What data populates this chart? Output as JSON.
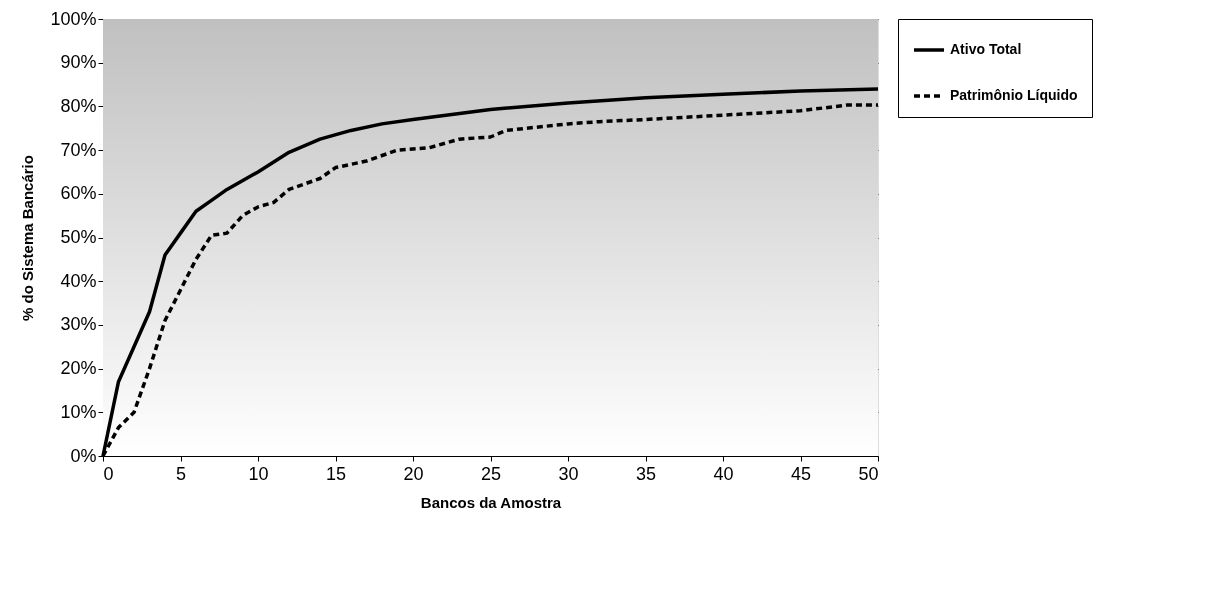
{
  "chart_data": {
    "type": "line",
    "xlabel": "Bancos da Amostra",
    "ylabel": "% do Sistema Bancário",
    "xlim": [
      0,
      50
    ],
    "xticks": [
      0,
      5,
      10,
      15,
      20,
      25,
      30,
      35,
      40,
      45,
      50
    ],
    "ylim": [
      0,
      100
    ],
    "yticks": [
      {
        "value": 0,
        "label": "0%"
      },
      {
        "value": 10,
        "label": "10%"
      },
      {
        "value": 20,
        "label": "20%"
      },
      {
        "value": 30,
        "label": "30%"
      },
      {
        "value": 40,
        "label": "40%"
      },
      {
        "value": 50,
        "label": "50%"
      },
      {
        "value": 60,
        "label": "60%"
      },
      {
        "value": 70,
        "label": "70%"
      },
      {
        "value": 80,
        "label": "80%"
      },
      {
        "value": 90,
        "label": "90%"
      },
      {
        "value": 100,
        "label": "100%"
      }
    ],
    "grid": "y",
    "legend": "right",
    "marker": "none",
    "series": [
      {
        "name": "Ativo Total",
        "color": "#000000",
        "line_style": "solid",
        "x": [
          0,
          1,
          2,
          3,
          4,
          5,
          6,
          7,
          8,
          10,
          12,
          14,
          16,
          18,
          20,
          25,
          30,
          35,
          40,
          45,
          50
        ],
        "values": [
          0,
          17,
          25,
          33,
          46,
          51,
          56,
          58.5,
          61,
          65,
          69.5,
          72.5,
          74.5,
          76,
          77,
          79.3,
          80.8,
          82,
          82.8,
          83.5,
          84
        ]
      },
      {
        "name": "Patrimônio Líquido",
        "color": "#000000",
        "line_style": "dashed",
        "x": [
          0,
          1,
          2,
          3,
          4,
          5,
          6,
          7,
          8,
          9,
          10,
          11,
          12,
          14,
          15,
          17,
          19,
          21,
          23,
          25,
          26,
          30,
          32,
          35,
          40,
          45,
          48,
          50
        ],
        "values": [
          0,
          6.5,
          10,
          20,
          31,
          38,
          45,
          50.5,
          51,
          55,
          57,
          58,
          61,
          63.5,
          66,
          67.5,
          70,
          70.5,
          72.5,
          73,
          74.5,
          76,
          76.5,
          77,
          78,
          79,
          80.3,
          80.3
        ]
      }
    ]
  }
}
